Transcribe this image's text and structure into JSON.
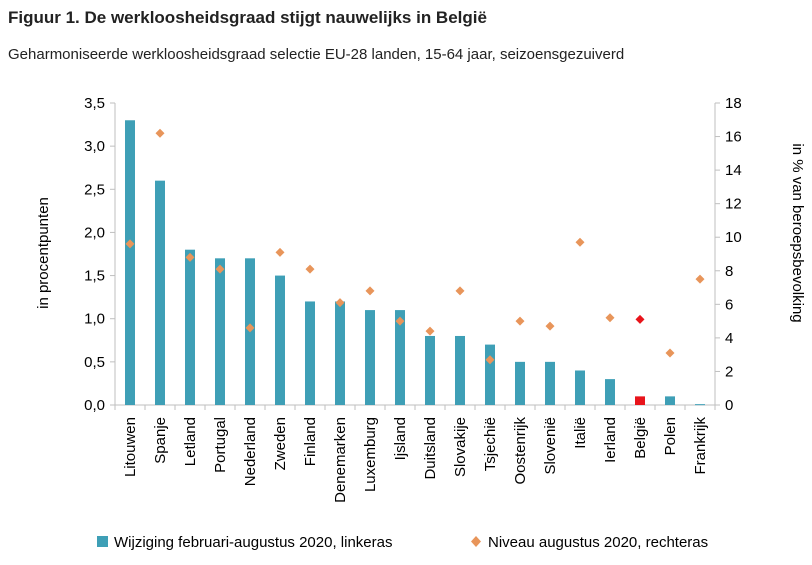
{
  "title": "Figuur 1. De werkloosheidsgraad stijgt nauwelijks in België",
  "subtitle": "Geharmoniseerde werkloosheidsgraad selectie EU-28 landen, 15-64 jaar, seizoensgezuiverd",
  "chart_data": {
    "type": "bar",
    "categories": [
      "Litouwen",
      "Spanje",
      "Letland",
      "Portugal",
      "Nederland",
      "Zweden",
      "Finland",
      "Denemarken",
      "Luxemburg",
      "Ijsland",
      "Duitsland",
      "Slovakije",
      "Tsjechië",
      "Oostenrijk",
      "Slovenië",
      "Italië",
      "Ierland",
      "België",
      "Polen",
      "Frankrijk"
    ],
    "series": [
      {
        "name": "Wijziging februari-augustus 2020, linkeras",
        "type": "bar",
        "axis": "left",
        "color": "#3e9fb6",
        "highlight_color": "#e8141b",
        "values": [
          3.3,
          2.6,
          1.8,
          1.7,
          1.7,
          1.5,
          1.2,
          1.2,
          1.1,
          1.1,
          0.8,
          0.8,
          0.7,
          0.5,
          0.5,
          0.4,
          0.3,
          0.1,
          0.1,
          0.01
        ]
      },
      {
        "name": "Niveau augustus 2020, rechteras",
        "type": "scatter",
        "axis": "right",
        "color": "#e8955a",
        "highlight_color": "#e8141b",
        "values": [
          9.6,
          16.2,
          8.8,
          8.1,
          4.6,
          9.1,
          8.1,
          6.1,
          6.8,
          5.0,
          4.4,
          6.8,
          2.7,
          5.0,
          4.7,
          9.7,
          5.2,
          5.1,
          3.1,
          7.5
        ]
      }
    ],
    "highlight_category": "België",
    "ylabel_left": "in procentpunten",
    "ylabel_right": "in % van beroepsbevolking",
    "ylim_left": [
      0,
      3.5
    ],
    "yticks_left": [
      "0,0",
      "0,5",
      "1,0",
      "1,5",
      "2,0",
      "2,5",
      "3,0",
      "3,5"
    ],
    "ylim_right": [
      0,
      18
    ],
    "yticks_right": [
      "0",
      "2",
      "4",
      "6",
      "8",
      "10",
      "12",
      "14",
      "16",
      "18"
    ],
    "grid": false,
    "legend_position": "bottom"
  }
}
